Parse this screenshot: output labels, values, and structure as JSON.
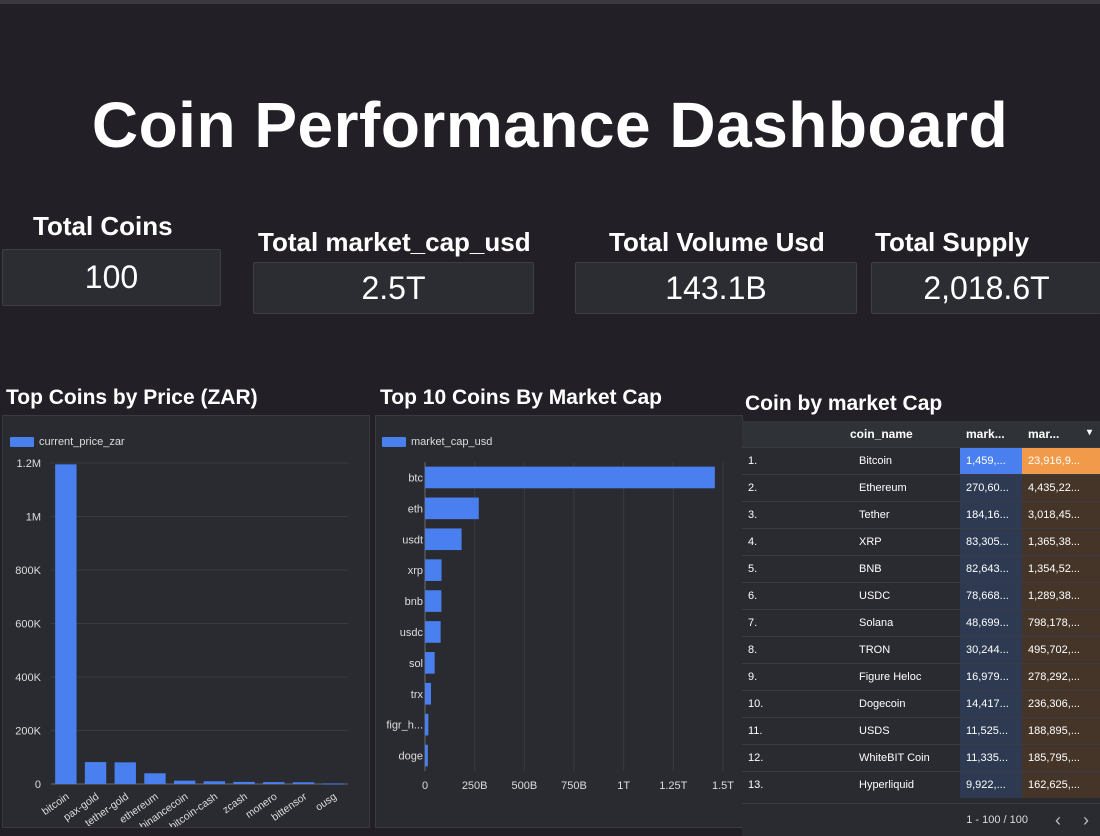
{
  "dashboard": {
    "title": "Coin Performance Dashboard"
  },
  "kpis": [
    {
      "label": "Total Coins",
      "value": "100"
    },
    {
      "label": "Total market_cap_usd",
      "value": "2.5T"
    },
    {
      "label": "Total Volume Usd",
      "value": "143.1B"
    },
    {
      "label": "Total Supply",
      "value": "2,018.6T"
    }
  ],
  "price_chart": {
    "title": "Top Coins by Price (ZAR)",
    "legend": "current_price_zar",
    "color": "#4a7ff0"
  },
  "cap_chart": {
    "title": "Top 10 Coins By Market Cap",
    "legend": "market_cap_usd",
    "color": "#4a7ff0"
  },
  "chart_data": [
    {
      "type": "bar",
      "title": "Top Coins by Price (ZAR)",
      "series_name": "current_price_zar",
      "categories": [
        "bitcoin",
        "pax-gold",
        "tether-gold",
        "ethereum",
        "binancecoin",
        "bitcoin-cash",
        "zcash",
        "monero",
        "bittensor",
        "ousg"
      ],
      "values": [
        1195000,
        82000,
        81000,
        40000,
        12500,
        10200,
        7800,
        7000,
        6500,
        2000
      ],
      "ylim": [
        0,
        1200000
      ],
      "yticks": [
        "0",
        "200K",
        "400K",
        "600K",
        "800K",
        "1M",
        "1.2M"
      ],
      "ytick_values": [
        0,
        200000,
        400000,
        600000,
        800000,
        1000000,
        1200000
      ]
    },
    {
      "type": "bar",
      "orientation": "horizontal",
      "title": "Top 10 Coins By Market Cap",
      "series_name": "market_cap_usd",
      "categories": [
        "btc",
        "eth",
        "usdt",
        "xrp",
        "bnb",
        "usdc",
        "sol",
        "trx",
        "figr_h...",
        "doge"
      ],
      "values": [
        1459000000000,
        270600000000,
        184160000000,
        83305000000,
        82643000000,
        78668000000,
        48699000000,
        30244000000,
        16979000000,
        14417000000
      ],
      "xlim": [
        0,
        1500000000000
      ],
      "xticks": [
        "0",
        "250B",
        "500B",
        "750B",
        "1T",
        "1.25T",
        "1.5T"
      ],
      "xtick_values": [
        0,
        250000000000,
        500000000000,
        750000000000,
        1000000000000,
        1250000000000,
        1500000000000
      ]
    }
  ],
  "table": {
    "title": "Coin by market Cap",
    "headers": [
      "",
      "coin_name",
      "mark...",
      "mar..."
    ],
    "sort_icon": "▾",
    "rows": [
      {
        "rank": "1.",
        "name": "Bitcoin",
        "cap": "1,459,...",
        "sup": "23,916,9..."
      },
      {
        "rank": "2.",
        "name": "Ethereum",
        "cap": "270,60...",
        "sup": "4,435,22..."
      },
      {
        "rank": "3.",
        "name": "Tether",
        "cap": "184,16...",
        "sup": "3,018,45..."
      },
      {
        "rank": "4.",
        "name": "XRP",
        "cap": "83,305...",
        "sup": "1,365,38..."
      },
      {
        "rank": "5.",
        "name": "BNB",
        "cap": "82,643...",
        "sup": "1,354,52..."
      },
      {
        "rank": "6.",
        "name": "USDC",
        "cap": "78,668...",
        "sup": "1,289,38..."
      },
      {
        "rank": "7.",
        "name": "Solana",
        "cap": "48,699...",
        "sup": "798,178,..."
      },
      {
        "rank": "8.",
        "name": "TRON",
        "cap": "30,244...",
        "sup": "495,702,..."
      },
      {
        "rank": "9.",
        "name": "Figure Heloc",
        "cap": "16,979...",
        "sup": "278,292,..."
      },
      {
        "rank": "10.",
        "name": "Dogecoin",
        "cap": "14,417...",
        "sup": "236,306,..."
      },
      {
        "rank": "11.",
        "name": "USDS",
        "cap": "11,525...",
        "sup": "188,895,..."
      },
      {
        "rank": "12.",
        "name": "WhiteBIT Coin",
        "cap": "11,335...",
        "sup": "185,795,..."
      },
      {
        "rank": "13.",
        "name": "Hyperliquid",
        "cap": "9,922,...",
        "sup": "162,625,..."
      }
    ],
    "pagination": "1 - 100 / 100",
    "prev_icon": "‹",
    "next_icon": "›"
  }
}
